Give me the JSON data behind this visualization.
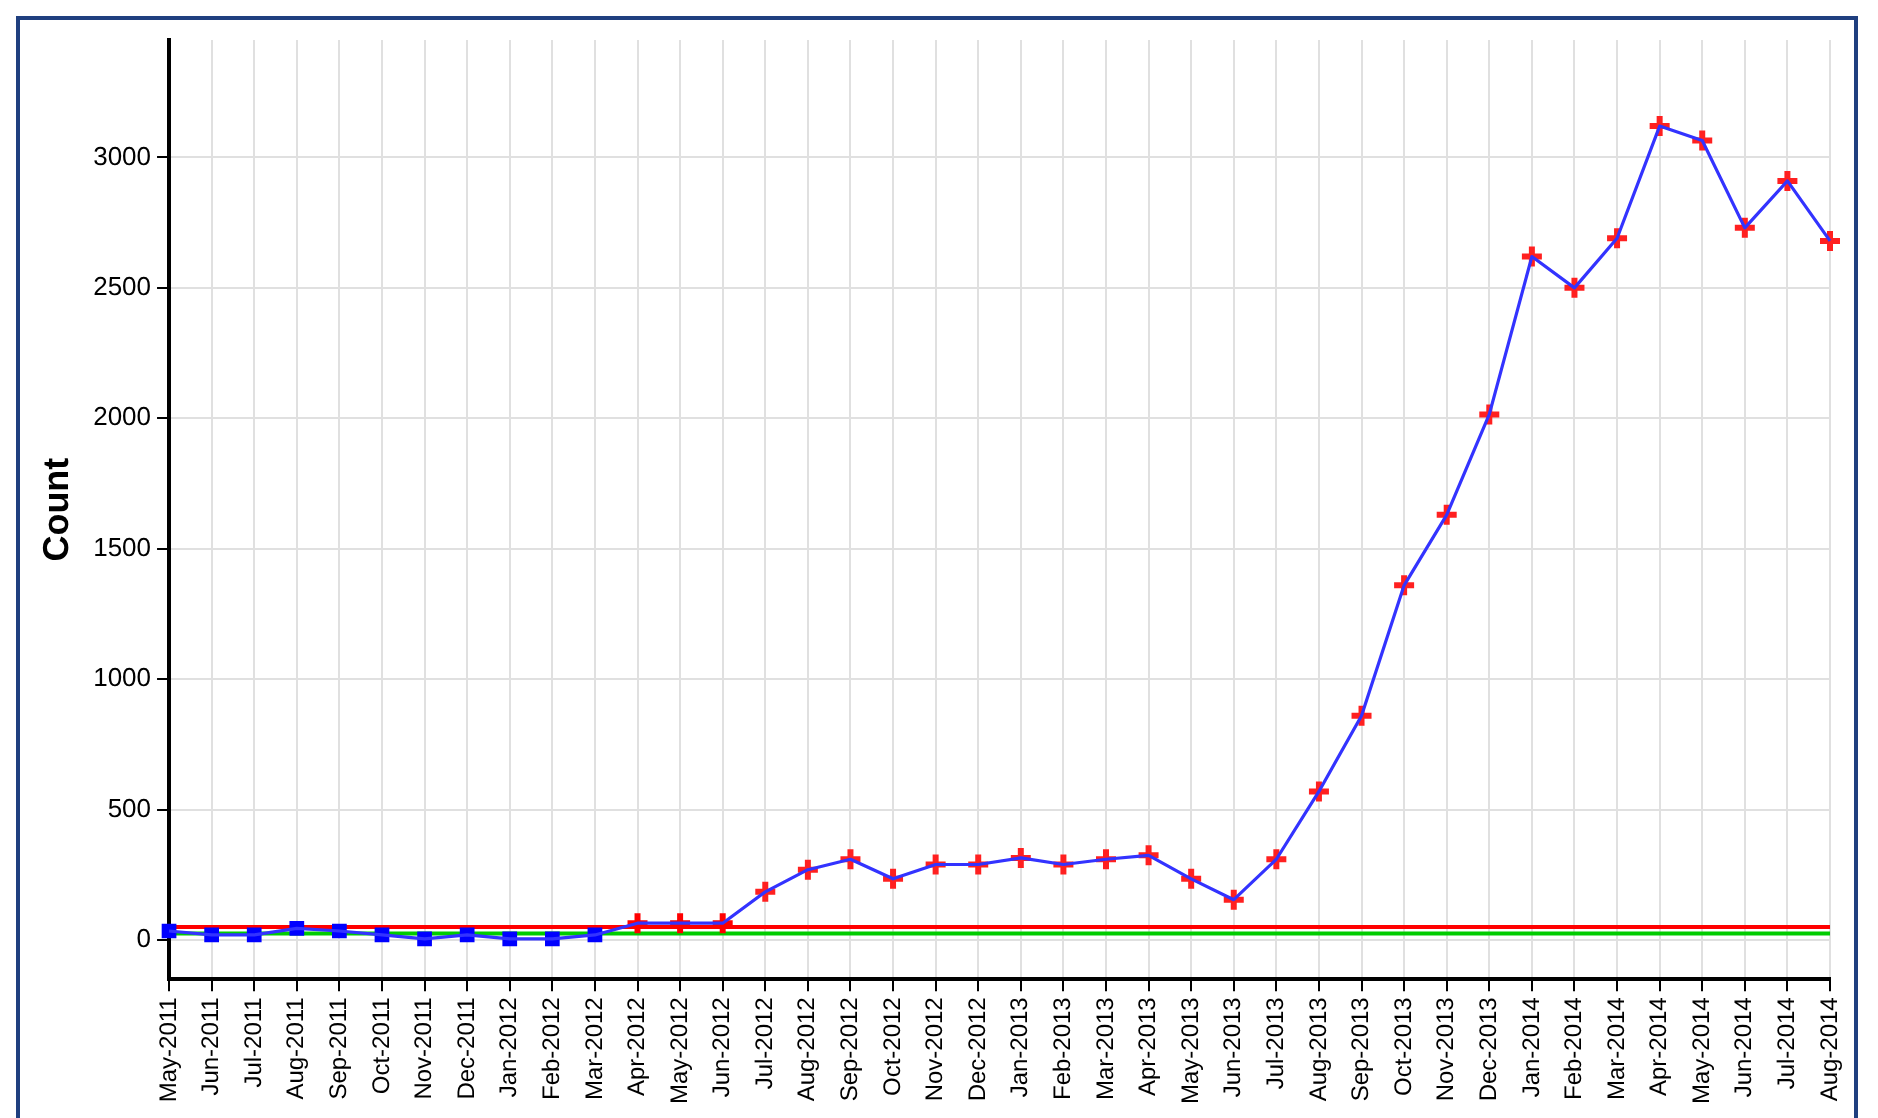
{
  "chart_data": {
    "type": "line",
    "ylabel": "Count",
    "categories": [
      "May-2011",
      "Jun-2011",
      "Jul-2011",
      "Aug-2011",
      "Sep-2011",
      "Oct-2011",
      "Nov-2011",
      "Dec-2011",
      "Jan-2012",
      "Feb-2012",
      "Mar-2012",
      "Apr-2012",
      "May-2012",
      "Jun-2012",
      "Jul-2012",
      "Aug-2012",
      "Sep-2012",
      "Oct-2012",
      "Nov-2012",
      "Dec-2012",
      "Jan-2013",
      "Feb-2013",
      "Mar-2013",
      "Apr-2013",
      "May-2013",
      "Jun-2013",
      "Jul-2013",
      "Aug-2013",
      "Sep-2013",
      "Oct-2013",
      "Nov-2013",
      "Dec-2013",
      "Jan-2014",
      "Feb-2014",
      "Mar-2014",
      "Apr-2014",
      "May-2014",
      "Jun-2014",
      "Jul-2014",
      "Aug-2014"
    ],
    "series": [
      {
        "type": "line",
        "color": "#3333ff",
        "marker": "none",
        "values": [
          35,
          20,
          20,
          45,
          35,
          20,
          5,
          20,
          5,
          5,
          20,
          65,
          65,
          65,
          185,
          270,
          310,
          235,
          290,
          290,
          315,
          290,
          310,
          325,
          235,
          155,
          310,
          570,
          860,
          1360,
          1630,
          2015,
          2620,
          2500,
          2690,
          3120,
          3065,
          2730,
          2910,
          2680
        ]
      },
      {
        "type": "scatter",
        "color": "#0000ff",
        "marker": "square",
        "values": [
          35,
          20,
          20,
          45,
          35,
          20,
          5,
          20,
          5,
          5,
          20,
          null,
          null,
          null,
          null,
          null,
          null,
          null,
          null,
          null,
          null,
          null,
          null,
          null,
          null,
          null,
          null,
          null,
          null,
          null,
          null,
          null,
          null,
          null,
          null,
          null,
          null,
          null,
          null,
          null
        ]
      },
      {
        "type": "scatter",
        "color": "#ff0000",
        "marker": "cross",
        "values": [
          null,
          null,
          null,
          null,
          null,
          null,
          null,
          null,
          null,
          null,
          null,
          65,
          65,
          65,
          null,
          null,
          null,
          null,
          null,
          null,
          null,
          null,
          null,
          null,
          null,
          null,
          null,
          null,
          null,
          null,
          null,
          null,
          null,
          null,
          null,
          null,
          null,
          null,
          null,
          null
        ]
      },
      {
        "type": "scatter",
        "color": "#ff2020",
        "marker": "cross",
        "values": [
          null,
          null,
          null,
          null,
          null,
          null,
          null,
          null,
          null,
          null,
          null,
          null,
          null,
          null,
          185,
          270,
          310,
          235,
          290,
          290,
          315,
          290,
          310,
          325,
          235,
          155,
          310,
          570,
          860,
          1360,
          1630,
          2015,
          2620,
          2500,
          2690,
          3120,
          3065,
          2730,
          2910,
          2680
        ]
      }
    ],
    "ref_lines": [
      {
        "axis": "y",
        "value": 50,
        "color": "#ff0000"
      },
      {
        "axis": "y",
        "value": 25,
        "color": "#00cc00"
      }
    ],
    "ylim": [
      -150,
      3450
    ],
    "yticks": [
      0,
      500,
      1000,
      1500,
      2000,
      2500,
      3000
    ],
    "grid": true,
    "legend": false
  }
}
